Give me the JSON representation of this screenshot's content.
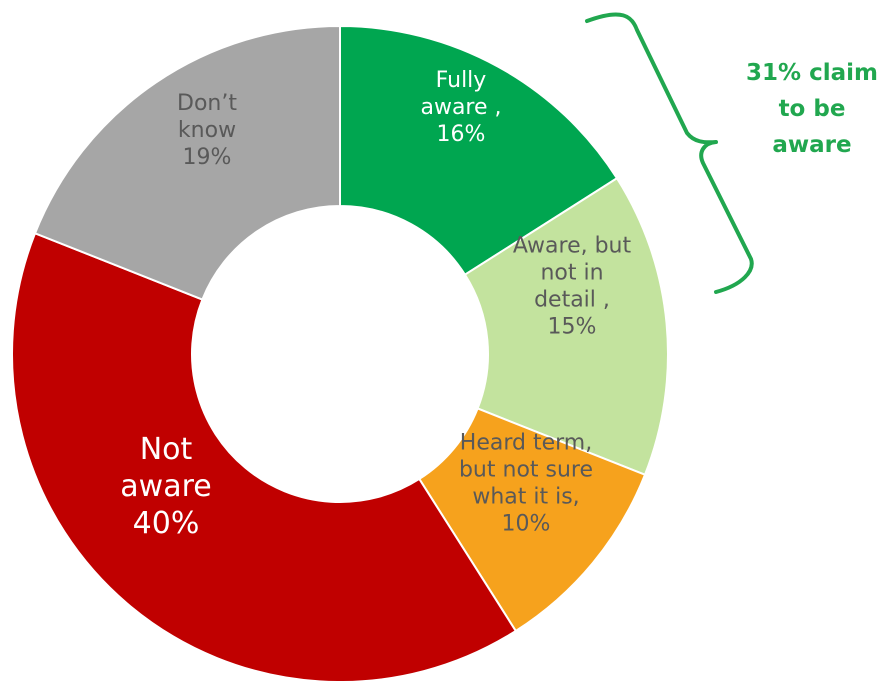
{
  "chart_data": {
    "type": "pie",
    "donut": true,
    "slices": [
      {
        "label_lines": [
          "Fully",
          "aware ,",
          "16%"
        ],
        "value": 16,
        "color": "#00a650",
        "text_color": "#ffffff"
      },
      {
        "label_lines": [
          "Aware, but",
          "not in",
          "detail ,",
          "15%"
        ],
        "value": 15,
        "color": "#c3e39e",
        "text_color": "#595959"
      },
      {
        "label_lines": [
          "Heard term,",
          "but not sure",
          "what it is,",
          "10%"
        ],
        "value": 10,
        "color": "#f6a21d",
        "text_color": "#595959"
      },
      {
        "label_lines": [
          "Not",
          "aware",
          "40%"
        ],
        "value": 40,
        "color": "#c00000",
        "text_color": "#ffffff"
      },
      {
        "label_lines": [
          "Don’t",
          "know",
          "19%"
        ],
        "value": 19,
        "color": "#a6a6a6",
        "text_color": "#595959"
      }
    ],
    "annotation": {
      "lines": [
        "31% claim",
        "to be",
        "aware"
      ],
      "color": "#21a74f"
    }
  }
}
